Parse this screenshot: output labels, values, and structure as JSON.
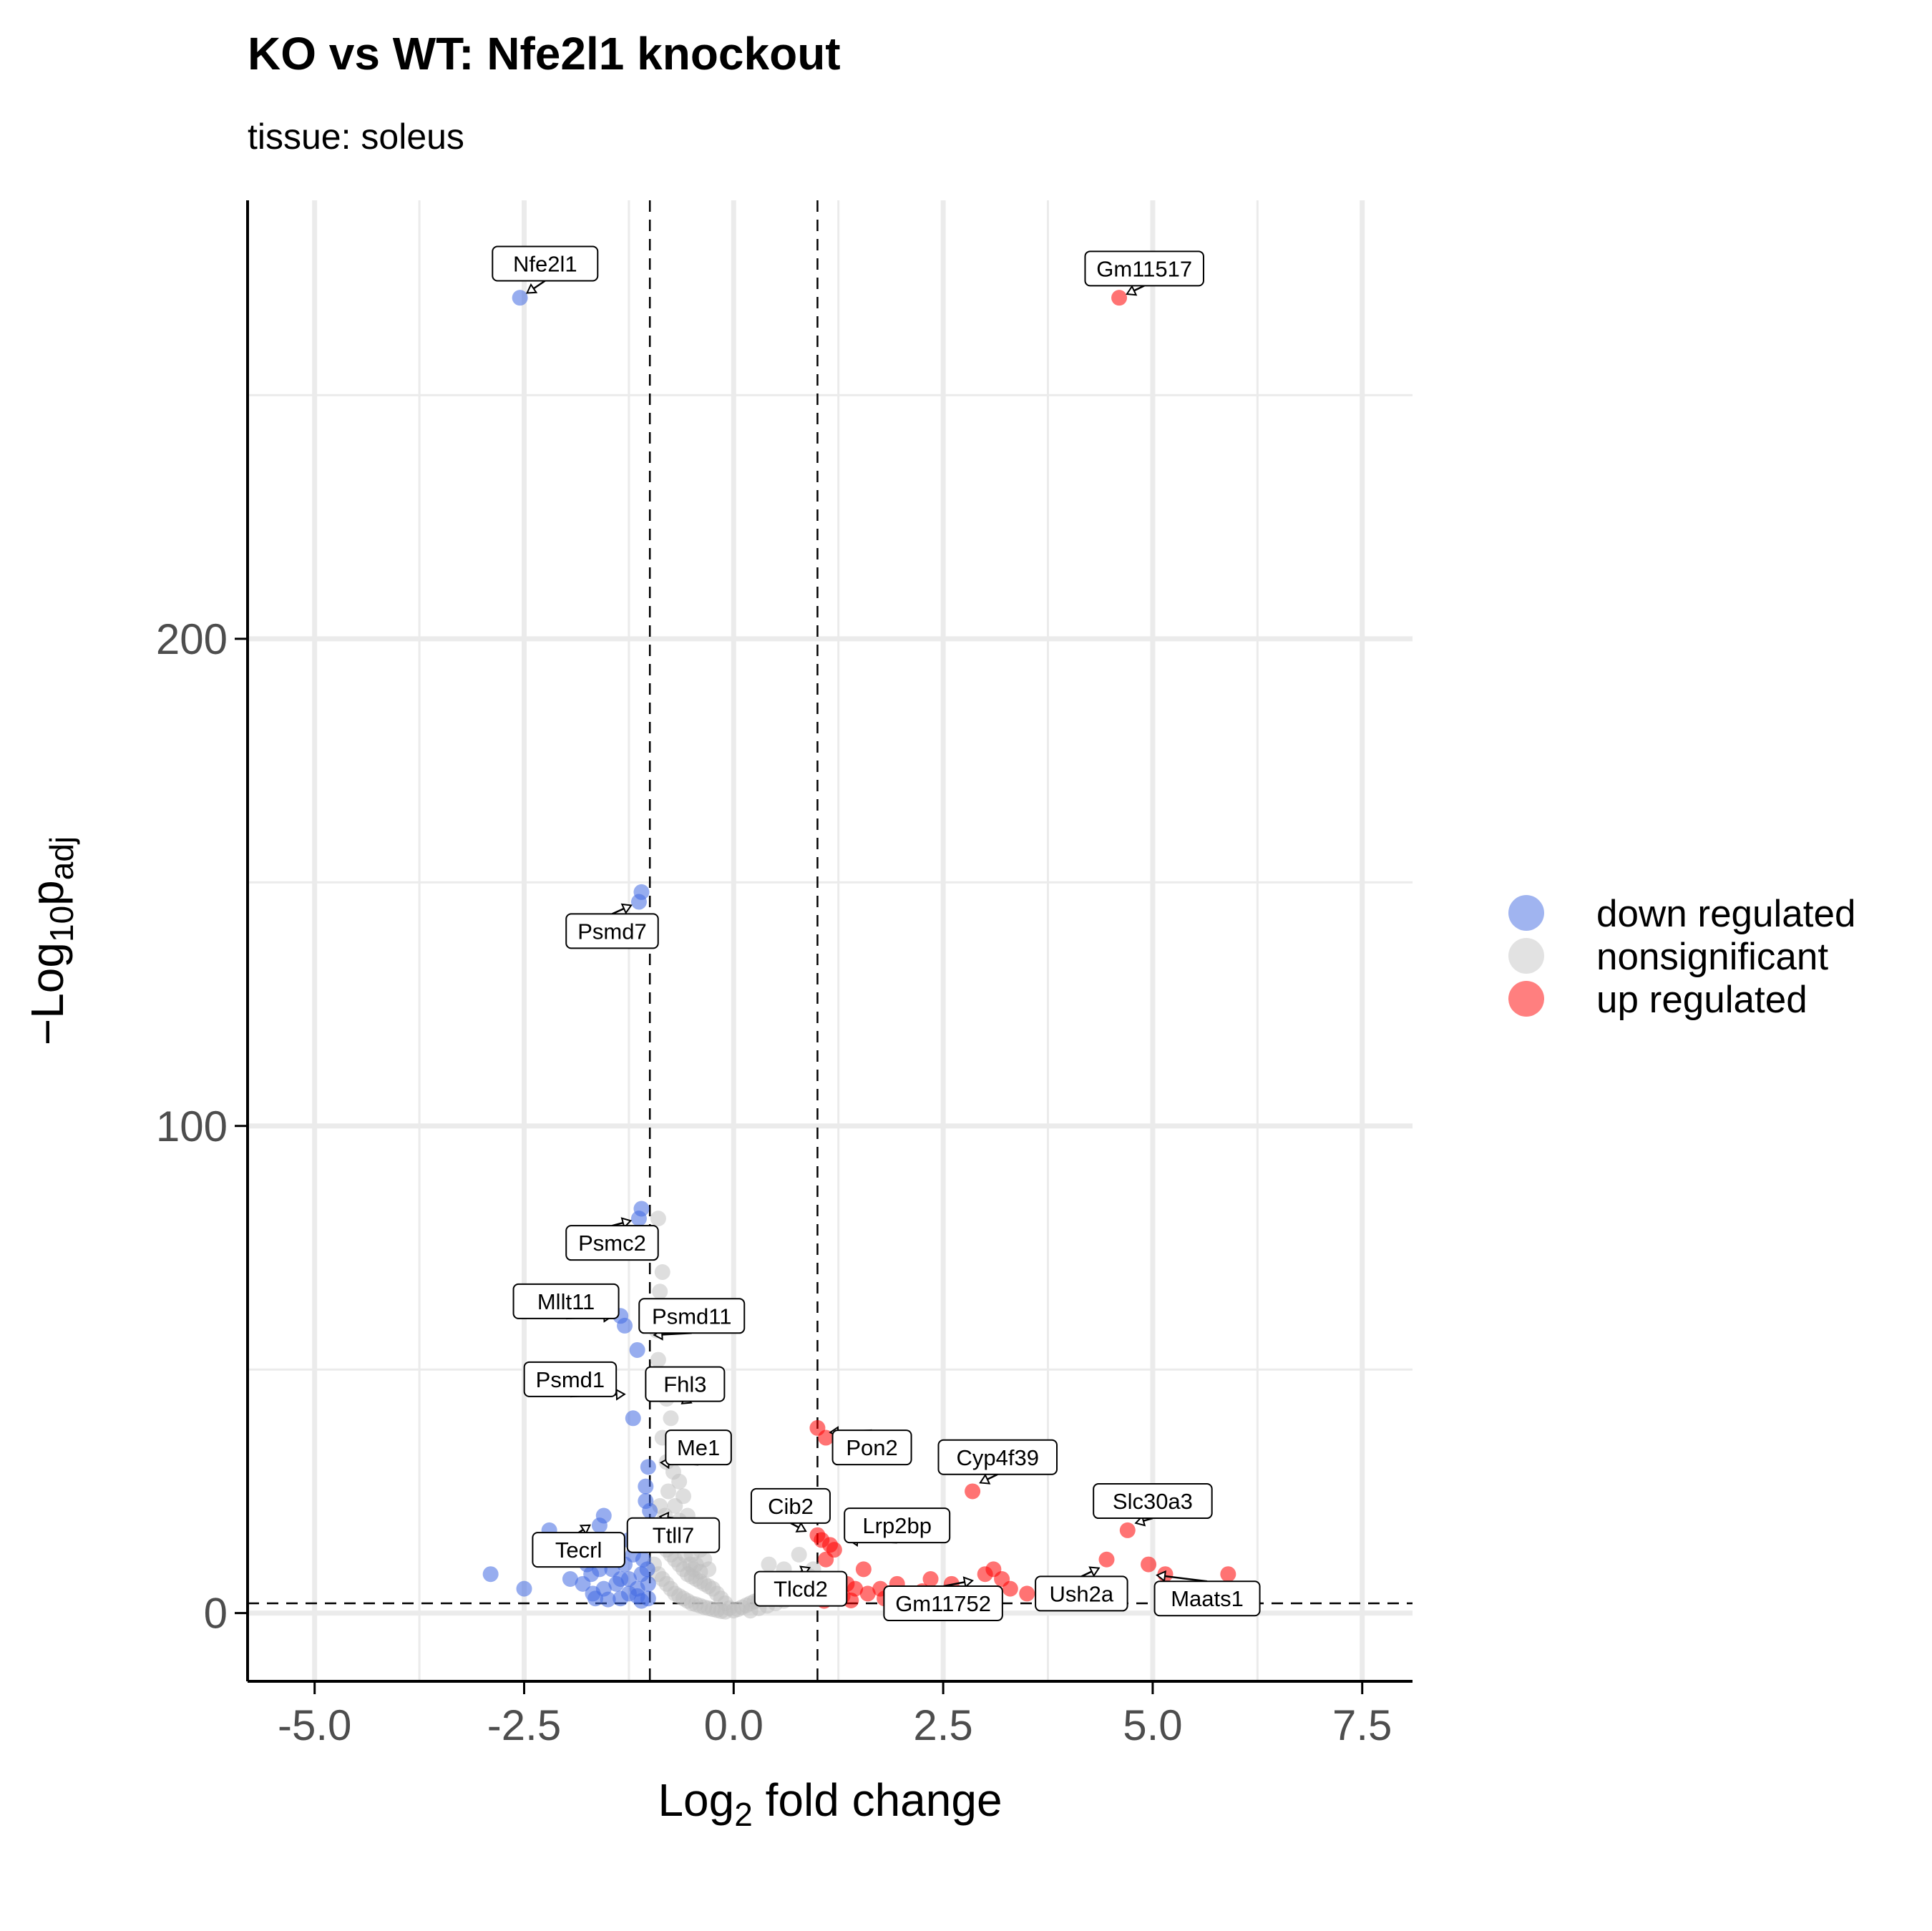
{
  "title": "KO vs WT: Nfe2l1 knockout",
  "subtitle": "tissue: soleus",
  "legend": [
    {
      "label": "down regulated",
      "color": "#4169E1"
    },
    {
      "label": "nonsignificant",
      "color": "#BEBEBE"
    },
    {
      "label": "up regulated",
      "color": "#FF0000"
    }
  ],
  "chart_data": {
    "type": "scatter",
    "xlabel": {
      "main": "Log",
      "sub": "2",
      "rest": " fold change"
    },
    "ylabel": {
      "main": "−Log",
      "sub": "10",
      "p": "p",
      "psub": "adj"
    },
    "xlim": [
      -5.8,
      8.1
    ],
    "ylim": [
      -14,
      290
    ],
    "x_ticks": [
      -5.0,
      -2.5,
      0.0,
      2.5,
      5.0,
      7.5
    ],
    "x_tick_labels": [
      "-5.0",
      "-2.5",
      "0.0",
      "2.5",
      "5.0",
      "7.5"
    ],
    "y_ticks": [
      0,
      100,
      200
    ],
    "y_tick_labels": [
      "0",
      "100",
      "200"
    ],
    "grid": true,
    "legend_position": "right",
    "thresholds": {
      "fold_change": [
        -1,
        1
      ],
      "padj_neglog10": 2
    },
    "series": [
      {
        "name": "down regulated",
        "color": "#4169E1",
        "points": [
          [
            -2.55,
            270
          ],
          [
            -1.1,
            148
          ],
          [
            -1.13,
            146
          ],
          [
            -1.1,
            83
          ],
          [
            -1.13,
            81
          ],
          [
            -1.35,
            61
          ],
          [
            -1.3,
            59
          ],
          [
            -1.15,
            54
          ],
          [
            -1.2,
            40
          ],
          [
            -1.02,
            30
          ],
          [
            -1.05,
            26
          ],
          [
            -1.05,
            23
          ],
          [
            -1.0,
            21
          ],
          [
            -1.55,
            20
          ],
          [
            -1.6,
            18
          ],
          [
            -2.2,
            17
          ],
          [
            -2.12,
            15
          ],
          [
            -1.6,
            13
          ],
          [
            -1.5,
            12
          ],
          [
            -1.4,
            11
          ],
          [
            -1.2,
            12
          ],
          [
            -1.08,
            11
          ],
          [
            -1.3,
            10
          ],
          [
            -1.45,
            9
          ],
          [
            -1.6,
            9
          ],
          [
            -1.7,
            8
          ],
          [
            -1.1,
            8
          ],
          [
            -1.25,
            7
          ],
          [
            -1.35,
            7
          ],
          [
            -1.02,
            6
          ],
          [
            -1.15,
            5
          ],
          [
            -1.55,
            5
          ],
          [
            -2.9,
            8
          ],
          [
            -2.5,
            5
          ],
          [
            -1.65,
            3
          ],
          [
            -1.68,
            4
          ],
          [
            -1.25,
            4
          ],
          [
            -1.02,
            3
          ],
          [
            -1.35,
            3
          ],
          [
            -1.1,
            2.5
          ],
          [
            -1.5,
            2.8
          ],
          [
            -1.8,
            6
          ],
          [
            -1.95,
            7
          ],
          [
            -1.03,
            9
          ],
          [
            -1.07,
            14
          ],
          [
            -1.25,
            15
          ],
          [
            -1.4,
            6
          ],
          [
            -1.15,
            3.5
          ],
          [
            -2.05,
            12
          ],
          [
            -1.75,
            10
          ]
        ]
      },
      {
        "name": "nonsignificant",
        "color": "#BEBEBE",
        "points": [
          [
            -0.9,
            81
          ],
          [
            -0.85,
            70
          ],
          [
            -0.88,
            66
          ],
          [
            -0.9,
            62
          ],
          [
            -0.92,
            58
          ],
          [
            -0.9,
            52
          ],
          [
            -0.87,
            48
          ],
          [
            -0.8,
            44
          ],
          [
            -0.75,
            40
          ],
          [
            -0.85,
            36
          ],
          [
            -0.7,
            33
          ],
          [
            -0.8,
            31
          ],
          [
            -0.72,
            29
          ],
          [
            -0.65,
            27
          ],
          [
            -0.78,
            25
          ],
          [
            -0.6,
            24
          ],
          [
            -0.7,
            22
          ],
          [
            -0.55,
            20
          ],
          [
            -0.65,
            19
          ],
          [
            -0.5,
            17
          ],
          [
            -0.6,
            16
          ],
          [
            -0.45,
            15
          ],
          [
            -0.55,
            14
          ],
          [
            -0.4,
            13
          ],
          [
            -0.5,
            12
          ],
          [
            -0.35,
            11
          ],
          [
            -0.45,
            10
          ],
          [
            -0.3,
            9
          ],
          [
            -0.4,
            8.5
          ],
          [
            -0.9,
            18
          ],
          [
            -0.95,
            15
          ],
          [
            -0.85,
            14
          ],
          [
            -0.8,
            13
          ],
          [
            -0.75,
            12
          ],
          [
            -0.7,
            11
          ],
          [
            -0.65,
            10
          ],
          [
            -0.6,
            9
          ],
          [
            -0.55,
            8
          ],
          [
            -0.5,
            7.5
          ],
          [
            -0.45,
            7
          ],
          [
            -0.4,
            6.5
          ],
          [
            -0.35,
            6
          ],
          [
            -0.3,
            5.5
          ],
          [
            -0.25,
            5
          ],
          [
            -0.2,
            4
          ],
          [
            -0.15,
            3
          ],
          [
            -0.1,
            2
          ],
          [
            -0.05,
            1
          ],
          [
            0.0,
            0.5
          ],
          [
            0.05,
            0.8
          ],
          [
            0.1,
            1.2
          ],
          [
            0.15,
            1.6
          ],
          [
            0.2,
            2.0
          ],
          [
            0.25,
            2.4
          ],
          [
            0.3,
            2.8
          ],
          [
            0.35,
            3.2
          ],
          [
            0.4,
            3.6
          ],
          [
            0.45,
            4.0
          ],
          [
            0.5,
            4.4
          ],
          [
            0.55,
            4.8
          ],
          [
            0.6,
            5.2
          ],
          [
            0.65,
            5.6
          ],
          [
            0.7,
            6.0
          ],
          [
            0.75,
            6.4
          ],
          [
            0.8,
            6.8
          ],
          [
            0.85,
            7.2
          ],
          [
            0.9,
            7.6
          ],
          [
            0.42,
            10
          ],
          [
            0.6,
            9
          ],
          [
            0.78,
            12
          ],
          [
            0.95,
            9
          ],
          [
            -0.95,
            10
          ],
          [
            -0.9,
            8
          ],
          [
            -0.85,
            7
          ],
          [
            -0.8,
            6
          ],
          [
            -0.75,
            5
          ],
          [
            -0.7,
            4
          ],
          [
            -0.65,
            3.5
          ],
          [
            -0.6,
            3
          ],
          [
            -0.55,
            2.5
          ],
          [
            -0.5,
            2
          ],
          [
            -0.45,
            1.8
          ],
          [
            -0.4,
            1.5
          ],
          [
            -0.35,
            1.2
          ],
          [
            -0.3,
            1.0
          ],
          [
            -0.25,
            0.8
          ],
          [
            -0.2,
            0.6
          ],
          [
            -0.15,
            0.4
          ],
          [
            -0.1,
            0.3
          ],
          [
            0.2,
            0.5
          ],
          [
            0.3,
            1.0
          ],
          [
            0.4,
            1.5
          ],
          [
            0.5,
            2.0
          ],
          [
            0.6,
            2.5
          ],
          [
            0.7,
            3.0
          ],
          [
            0.8,
            3.5
          ],
          [
            0.9,
            4.0
          ],
          [
            -0.88,
            22
          ],
          [
            -0.82,
            20
          ],
          [
            -0.76,
            18
          ],
          [
            -0.68,
            16
          ],
          [
            -0.62,
            14
          ],
          [
            -0.58,
            12
          ],
          [
            -0.52,
            10
          ],
          [
            -0.48,
            9
          ]
        ]
      },
      {
        "name": "up regulated",
        "color": "#FF0000",
        "points": [
          [
            4.6,
            270
          ],
          [
            1.0,
            38
          ],
          [
            1.1,
            36
          ],
          [
            2.85,
            25
          ],
          [
            4.7,
            17
          ],
          [
            1.0,
            16
          ],
          [
            1.05,
            15
          ],
          [
            1.15,
            14
          ],
          [
            1.2,
            13
          ],
          [
            1.1,
            11
          ],
          [
            3.1,
            9
          ],
          [
            3.0,
            8
          ],
          [
            3.2,
            7
          ],
          [
            4.45,
            11
          ],
          [
            4.95,
            10
          ],
          [
            5.15,
            8
          ],
          [
            5.9,
            8
          ],
          [
            2.35,
            7
          ],
          [
            1.55,
            9
          ],
          [
            1.35,
            6
          ],
          [
            1.45,
            5
          ],
          [
            1.6,
            4
          ],
          [
            1.3,
            3.5
          ],
          [
            1.2,
            3
          ],
          [
            1.05,
            4
          ],
          [
            1.8,
            3
          ],
          [
            2.0,
            2.8
          ],
          [
            2.15,
            3.5
          ],
          [
            2.5,
            3.2
          ],
          [
            2.7,
            4
          ],
          [
            3.3,
            5
          ],
          [
            3.5,
            4
          ],
          [
            3.7,
            3.5
          ],
          [
            1.25,
            7
          ],
          [
            1.15,
            5
          ],
          [
            1.02,
            3.2
          ],
          [
            1.75,
            5
          ],
          [
            1.95,
            6
          ],
          [
            2.6,
            6
          ],
          [
            4.0,
            5
          ],
          [
            4.3,
            4
          ],
          [
            3.9,
            3.3
          ],
          [
            1.4,
            2.6
          ],
          [
            1.08,
            2.5
          ],
          [
            2.25,
            4.5
          ]
        ]
      }
    ],
    "labels": [
      {
        "text": "Nfe2l1",
        "x": -2.55,
        "y": 270,
        "lx": -2.25,
        "ly": 277
      },
      {
        "text": "Gm11517",
        "x": 4.6,
        "y": 270,
        "lx": 4.9,
        "ly": 276
      },
      {
        "text": "Psmd7",
        "x": -1.13,
        "y": 146,
        "lx": -1.45,
        "ly": 140
      },
      {
        "text": "Psmc2",
        "x": -1.13,
        "y": 81,
        "lx": -1.45,
        "ly": 76
      },
      {
        "text": "Mllt11",
        "x": -1.35,
        "y": 61,
        "lx": -2.0,
        "ly": 64
      },
      {
        "text": "Psmd11",
        "x": -1.05,
        "y": 57,
        "lx": -0.5,
        "ly": 61
      },
      {
        "text": "Psmd1",
        "x": -1.2,
        "y": 45,
        "lx": -1.95,
        "ly": 48
      },
      {
        "text": "Fhl3",
        "x": -0.7,
        "y": 42,
        "lx": -0.58,
        "ly": 47
      },
      {
        "text": "Me1",
        "x": -0.97,
        "y": 31,
        "lx": -0.42,
        "ly": 34
      },
      {
        "text": "Ttll7",
        "x": -0.98,
        "y": 20,
        "lx": -0.72,
        "ly": 16
      },
      {
        "text": "Tecrl",
        "x": -1.63,
        "y": 19,
        "lx": -1.85,
        "ly": 13
      },
      {
        "text": "Pon2",
        "x": 1.05,
        "y": 37,
        "lx": 1.65,
        "ly": 34
      },
      {
        "text": "Cyp4f39",
        "x": 2.85,
        "y": 26,
        "lx": 3.15,
        "ly": 32
      },
      {
        "text": "Cib2",
        "x": 0.95,
        "y": 16,
        "lx": 0.68,
        "ly": 22
      },
      {
        "text": "Lrp2bp",
        "x": 1.28,
        "y": 15,
        "lx": 1.95,
        "ly": 18
      },
      {
        "text": "Slc30a3",
        "x": 4.7,
        "y": 18,
        "lx": 5.0,
        "ly": 23
      },
      {
        "text": "Tlcd2",
        "x": 1.0,
        "y": 10,
        "lx": 0.8,
        "ly": 5
      },
      {
        "text": "Gm11752",
        "x": 2.95,
        "y": 7,
        "lx": 2.5,
        "ly": 2
      },
      {
        "text": "Ush2a",
        "x": 4.45,
        "y": 10,
        "lx": 4.15,
        "ly": 4
      },
      {
        "text": "Maats1",
        "x": 4.95,
        "y": 8,
        "lx": 5.65,
        "ly": 3
      }
    ]
  }
}
